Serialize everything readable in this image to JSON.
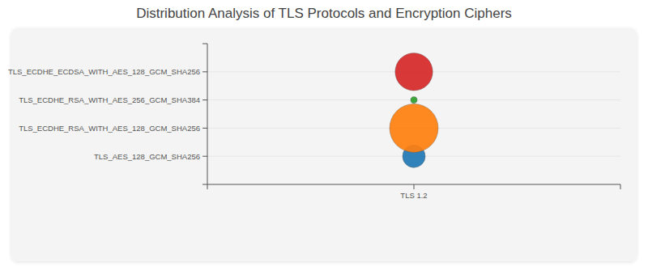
{
  "chart_data": {
    "type": "bubble",
    "title": "Distribution Analysis of TLS Protocols and Encryption Ciphers",
    "x": [
      "TLS 1.2",
      "TLS 1.2",
      "TLS 1.2",
      "TLS 1.2"
    ],
    "categories": [
      "TLS_AES_128_GCM_SHA256",
      "TLS_ECDHE_RSA_WITH_AES_128_GCM_SHA256",
      "TLS_ECDHE_RSA_WITH_AES_256_GCM_SHA384",
      "TLS_ECDHE_ECDSA_WITH_AES_128_GCM_SHA256"
    ],
    "sizes": [
      12,
      55,
      1,
      33
    ],
    "colors": [
      "#1f77b4",
      "#ff7f0e",
      "#2ca02c",
      "#d62728"
    ],
    "grid": true
  }
}
